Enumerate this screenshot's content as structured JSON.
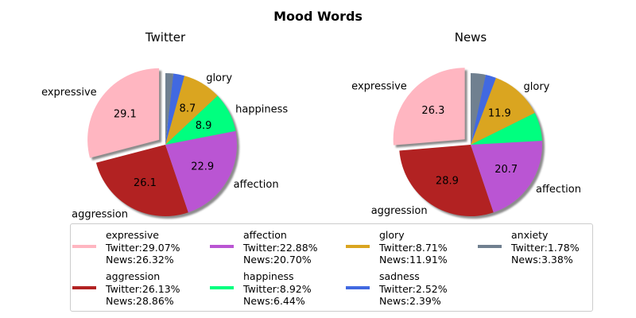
{
  "chart_data": {
    "type": "pie",
    "title": "Mood Words",
    "categories": [
      "expressive",
      "aggression",
      "affection",
      "happiness",
      "glory",
      "sadness",
      "anxiety"
    ],
    "colors": [
      "#ffb6c1",
      "#b22222",
      "#ba55d3",
      "#00ff7f",
      "#daa520",
      "#4169e1",
      "#708090"
    ],
    "explode": "expressive",
    "shadow": true,
    "legend_position": "bottom",
    "legend_columns": 4,
    "charts": [
      {
        "name": "Twitter",
        "values": [
          29.07,
          26.13,
          22.88,
          8.92,
          8.71,
          2.52,
          1.78
        ],
        "slice_labels": [
          "29.1",
          "26.1",
          "22.9",
          "8.9",
          "8.7",
          "",
          ""
        ],
        "outer_labels": [
          "expressive",
          "aggression",
          "affection",
          "happiness",
          "glory",
          "",
          ""
        ]
      },
      {
        "name": "News",
        "values": [
          26.32,
          28.86,
          20.7,
          6.44,
          11.91,
          2.39,
          3.38
        ],
        "slice_labels": [
          "26.3",
          "28.9",
          "20.7",
          "",
          "11.9",
          "",
          ""
        ],
        "outer_labels": [
          "expressive",
          "aggression",
          "affection",
          "",
          "glory",
          "",
          ""
        ]
      }
    ],
    "legend": [
      {
        "label": "expressive",
        "twitter": "Twitter:29.07%",
        "news": "News:26.32%"
      },
      {
        "label": "aggression",
        "twitter": "Twitter:26.13%",
        "news": "News:28.86%"
      },
      {
        "label": "affection",
        "twitter": "Twitter:22.88%",
        "news": "News:20.70%"
      },
      {
        "label": "happiness",
        "twitter": "Twitter:8.92%",
        "news": "News:6.44%"
      },
      {
        "label": "glory",
        "twitter": "Twitter:8.71%",
        "news": "News:11.91%"
      },
      {
        "label": "sadness",
        "twitter": "Twitter:2.52%",
        "news": "News:2.39%"
      },
      {
        "label": "anxiety",
        "twitter": "Twitter:1.78%",
        "news": "News:3.38%"
      }
    ]
  }
}
